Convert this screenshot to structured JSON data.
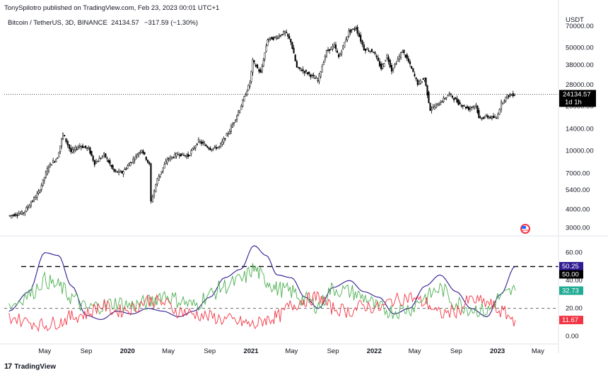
{
  "header": {
    "publisher_line": "TonySpilotro published on TradingView.com, Feb 23, 2023 00:01 UTC+1",
    "symbol_line": "Bitcoin / TetherUS, 3D, BINANCE",
    "last_price": "24134.57",
    "change": "−317.59 (−1.30%)"
  },
  "price_axis": {
    "currency": "USDT",
    "ticks": [
      "70000.00",
      "50000.00",
      "38000.00",
      "28000.00",
      "20000.00",
      "14000.00",
      "10000.00",
      "7000.00",
      "5400.00",
      "4000.00",
      "3000.00"
    ],
    "price_tag": "24134.57",
    "countdown": "1d 1h"
  },
  "indicator_axis": {
    "ticks": [
      "60.00",
      "40.00",
      "20.00",
      "0.00"
    ],
    "tags": {
      "purple": "50.25",
      "level": "50.00",
      "green": "32.73",
      "red": "11.67"
    }
  },
  "time_axis": {
    "labels": [
      "May",
      "Sep",
      "2020",
      "May",
      "Sep",
      "2021",
      "May",
      "Sep",
      "2022",
      "May",
      "Sep",
      "2023",
      "May"
    ]
  },
  "footer": {
    "brand": "TradingView"
  },
  "colors": {
    "candle": "#000000",
    "purple_line": "#311b92",
    "green_line": "#4caf50",
    "red_line": "#f23645",
    "green_tag": "#22ab94",
    "red_tag": "#f23645",
    "purple_tag": "#311b92"
  },
  "chart_data": [
    {
      "type": "line",
      "title": "Bitcoin / TetherUS, 3D, BINANCE",
      "ylabel": "USDT",
      "log_scale": true,
      "ylim": [
        2700,
        90000
      ],
      "x": [
        "2019-01-15",
        "2019-03-01",
        "2019-04-15",
        "2019-05-15",
        "2019-06-10",
        "2019-06-26",
        "2019-07-20",
        "2019-08-15",
        "2019-09-10",
        "2019-09-28",
        "2019-10-26",
        "2019-11-25",
        "2019-12-18",
        "2020-01-20",
        "2020-02-14",
        "2020-03-08",
        "2020-03-13",
        "2020-04-01",
        "2020-04-30",
        "2020-06-01",
        "2020-07-01",
        "2020-08-01",
        "2020-09-05",
        "2020-10-01",
        "2020-11-01",
        "2020-12-01",
        "2020-12-31",
        "2021-01-08",
        "2021-02-01",
        "2021-02-21",
        "2021-03-15",
        "2021-04-14",
        "2021-05-01",
        "2021-05-19",
        "2021-06-20",
        "2021-07-20",
        "2021-08-15",
        "2021-09-07",
        "2021-09-20",
        "2021-10-20",
        "2021-11-10",
        "2021-12-04",
        "2022-01-01",
        "2022-01-24",
        "2022-02-10",
        "2022-02-24",
        "2022-03-28",
        "2022-04-15",
        "2022-05-12",
        "2022-06-01",
        "2022-06-18",
        "2022-07-10",
        "2022-08-14",
        "2022-09-10",
        "2022-10-10",
        "2022-11-01",
        "2022-11-09",
        "2022-12-01",
        "2022-12-31",
        "2023-01-15",
        "2023-02-01",
        "2023-02-23"
      ],
      "values": [
        3600,
        3800,
        5200,
        7900,
        9000,
        13000,
        9800,
        10800,
        10300,
        8200,
        9400,
        7200,
        7100,
        8700,
        10200,
        8000,
        4500,
        6400,
        8700,
        9500,
        9200,
        11600,
        10300,
        10600,
        13700,
        19100,
        29000,
        40500,
        33500,
        57000,
        58000,
        63500,
        55000,
        36500,
        33500,
        30000,
        47000,
        51500,
        43000,
        64000,
        68000,
        49000,
        47000,
        36000,
        44000,
        35000,
        47500,
        40000,
        28500,
        31000,
        19000,
        20500,
        24200,
        21000,
        19200,
        20500,
        16500,
        17000,
        16600,
        21000,
        23500,
        24134.57
      ]
    },
    {
      "type": "line",
      "ylim": [
        -5,
        70
      ],
      "horizontal_levels": [
        50,
        20
      ],
      "x": [
        "2019-01-15",
        "2019-03-15",
        "2019-05-01",
        "2019-06-10",
        "2019-07-20",
        "2019-09-01",
        "2019-10-15",
        "2019-12-01",
        "2020-01-15",
        "2020-03-01",
        "2020-04-15",
        "2020-06-01",
        "2020-07-15",
        "2020-09-01",
        "2020-10-15",
        "2020-12-01",
        "2021-01-10",
        "2021-02-15",
        "2021-03-20",
        "2021-05-01",
        "2021-06-10",
        "2021-07-20",
        "2021-09-01",
        "2021-10-20",
        "2021-12-01",
        "2022-01-15",
        "2022-03-01",
        "2022-04-15",
        "2022-06-01",
        "2022-07-15",
        "2022-09-01",
        "2022-10-15",
        "2022-12-01",
        "2023-01-10",
        "2023-02-23"
      ],
      "series": [
        {
          "name": "",
          "values": [
            18,
            32,
            60,
            58,
            36,
            15,
            12,
            18,
            16,
            20,
            18,
            14,
            18,
            28,
            42,
            48,
            65,
            58,
            44,
            42,
            28,
            20,
            35,
            40,
            32,
            28,
            16,
            20,
            36,
            44,
            32,
            20,
            14,
            30,
            50.25
          ]
        },
        {
          "name": "",
          "values": [
            22,
            30,
            40,
            36,
            28,
            20,
            22,
            24,
            22,
            24,
            30,
            26,
            22,
            30,
            36,
            40,
            48,
            40,
            34,
            32,
            26,
            22,
            34,
            32,
            28,
            20,
            18,
            20,
            28,
            34,
            24,
            20,
            18,
            28,
            32.73
          ]
        },
        {
          "name": "",
          "values": [
            14,
            10,
            8,
            10,
            14,
            16,
            22,
            18,
            20,
            26,
            24,
            18,
            16,
            14,
            12,
            10,
            8,
            12,
            14,
            22,
            26,
            28,
            20,
            18,
            22,
            20,
            26,
            28,
            24,
            16,
            18,
            26,
            24,
            18,
            11.67
          ]
        }
      ]
    }
  ]
}
